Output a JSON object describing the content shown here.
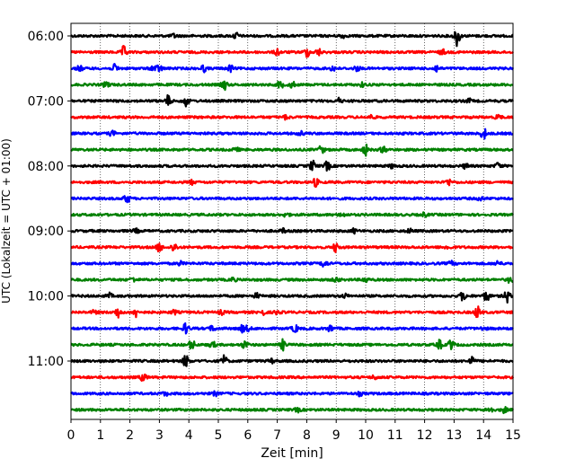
{
  "chart_data": {
    "type": "line",
    "title": "",
    "xlabel": "Zeit  [min]",
    "ylabel": "UTC (Lokalzeit = UTC + 01:00)",
    "xlim": [
      0,
      15
    ],
    "x_ticks": [
      "0",
      "1",
      "2",
      "3",
      "4",
      "5",
      "6",
      "7",
      "8",
      "9",
      "10",
      "11",
      "12",
      "13",
      "14",
      "15"
    ],
    "y_ticks": [
      {
        "label": "06:00",
        "row": 0
      },
      {
        "label": "07:00",
        "row": 4
      },
      {
        "label": "08:00",
        "row": 8
      },
      {
        "label": "09:00",
        "row": 12
      },
      {
        "label": "10:00",
        "row": 16
      },
      {
        "label": "11:00",
        "row": 20
      }
    ],
    "grid_x": true,
    "trace_interval_minutes": 15,
    "trace_colors": [
      "#000000",
      "#ff0000",
      "#0000ff",
      "#008000"
    ],
    "traces": [
      {
        "start": "06:00",
        "events": [
          [
            3.5,
            0.3
          ],
          [
            5.6,
            0.5
          ],
          [
            13.1,
            1.6
          ],
          [
            9.2,
            0.3
          ]
        ]
      },
      {
        "start": "06:15",
        "events": [
          [
            1.8,
            0.9
          ],
          [
            7.0,
            0.5
          ],
          [
            8.0,
            0.7
          ],
          [
            8.4,
            0.5
          ],
          [
            12.6,
            0.4
          ]
        ]
      },
      {
        "start": "06:30",
        "events": [
          [
            0.3,
            0.4
          ],
          [
            1.5,
            0.6
          ],
          [
            2.8,
            0.5
          ],
          [
            3.0,
            0.5
          ],
          [
            4.5,
            0.5
          ],
          [
            5.4,
            0.5
          ],
          [
            8.9,
            0.4
          ],
          [
            9.7,
            0.4
          ],
          [
            12.4,
            0.5
          ]
        ]
      },
      {
        "start": "06:45",
        "events": [
          [
            1.2,
            0.5
          ],
          [
            5.2,
            0.8
          ],
          [
            7.1,
            0.6
          ],
          [
            7.5,
            0.5
          ],
          [
            9.9,
            0.3
          ]
        ]
      },
      {
        "start": "07:00",
        "events": [
          [
            3.3,
            0.8
          ],
          [
            3.9,
            0.8
          ],
          [
            9.1,
            0.4
          ],
          [
            13.5,
            0.3
          ]
        ]
      },
      {
        "start": "07:15",
        "events": [
          [
            10.2,
            0.3
          ],
          [
            14.5,
            0.4
          ],
          [
            7.3,
            0.3
          ]
        ]
      },
      {
        "start": "07:30",
        "events": [
          [
            1.4,
            0.4
          ],
          [
            14.0,
            0.9
          ],
          [
            7.8,
            0.3
          ]
        ]
      },
      {
        "start": "07:45",
        "events": [
          [
            8.5,
            0.6
          ],
          [
            10.0,
            0.8
          ],
          [
            10.6,
            0.5
          ],
          [
            5.6,
            0.3
          ]
        ]
      },
      {
        "start": "08:00",
        "events": [
          [
            8.2,
            0.8
          ],
          [
            8.7,
            0.7
          ],
          [
            10.9,
            0.3
          ],
          [
            13.4,
            0.4
          ],
          [
            14.5,
            0.5
          ]
        ]
      },
      {
        "start": "08:15",
        "events": [
          [
            8.3,
            0.6
          ],
          [
            12.8,
            0.5
          ],
          [
            4.1,
            0.3
          ]
        ]
      },
      {
        "start": "08:30",
        "events": [
          [
            1.9,
            0.7
          ],
          [
            13.9,
            0.3
          ]
        ]
      },
      {
        "start": "08:45",
        "events": [
          [
            7.3,
            0.3
          ],
          [
            9.2,
            0.3
          ],
          [
            12.0,
            0.3
          ]
        ]
      },
      {
        "start": "09:00",
        "events": [
          [
            2.2,
            0.3
          ],
          [
            7.2,
            0.3
          ],
          [
            9.6,
            0.3
          ],
          [
            11.5,
            0.3
          ]
        ]
      },
      {
        "start": "09:15",
        "events": [
          [
            3.0,
            0.7
          ],
          [
            3.5,
            0.7
          ],
          [
            9.0,
            0.8
          ],
          [
            12.8,
            0.3
          ]
        ]
      },
      {
        "start": "09:30",
        "events": [
          [
            3.7,
            0.3
          ],
          [
            8.6,
            0.6
          ],
          [
            12.9,
            0.3
          ],
          [
            14.5,
            0.4
          ]
        ]
      },
      {
        "start": "09:45",
        "events": [
          [
            2.1,
            0.3
          ],
          [
            5.5,
            0.3
          ],
          [
            9.0,
            0.4
          ],
          [
            10.0,
            0.4
          ],
          [
            14.9,
            0.5
          ]
        ]
      },
      {
        "start": "10:00",
        "events": [
          [
            1.3,
            0.4
          ],
          [
            6.3,
            0.4
          ],
          [
            9.3,
            0.3
          ],
          [
            13.3,
            0.7
          ],
          [
            14.1,
            0.8
          ],
          [
            14.8,
            1.0
          ]
        ]
      },
      {
        "start": "10:15",
        "events": [
          [
            0.8,
            0.3
          ],
          [
            1.6,
            0.8
          ],
          [
            2.2,
            0.7
          ],
          [
            3.5,
            0.3
          ],
          [
            5.1,
            0.3
          ],
          [
            6.5,
            0.4
          ],
          [
            7.0,
            0.3
          ],
          [
            13.8,
            0.9
          ]
        ]
      },
      {
        "start": "10:30",
        "events": [
          [
            3.9,
            0.8
          ],
          [
            4.8,
            0.4
          ],
          [
            5.8,
            0.5
          ],
          [
            6.0,
            0.4
          ],
          [
            7.6,
            0.6
          ],
          [
            8.8,
            0.5
          ],
          [
            14.0,
            0.3
          ]
        ]
      },
      {
        "start": "10:45",
        "events": [
          [
            4.1,
            0.8
          ],
          [
            4.8,
            0.5
          ],
          [
            5.9,
            0.6
          ],
          [
            7.2,
            0.8
          ],
          [
            12.5,
            0.7
          ],
          [
            12.9,
            0.8
          ]
        ]
      },
      {
        "start": "11:00",
        "events": [
          [
            3.9,
            1.0
          ],
          [
            5.2,
            0.8
          ],
          [
            6.8,
            0.3
          ],
          [
            13.6,
            0.6
          ]
        ]
      },
      {
        "start": "11:15",
        "events": [
          [
            2.4,
            0.3
          ],
          [
            2.5,
            0.3
          ],
          [
            10.3,
            0.3
          ]
        ]
      },
      {
        "start": "11:30",
        "events": [
          [
            4.9,
            0.3
          ],
          [
            9.8,
            0.3
          ],
          [
            3.2,
            0.3
          ]
        ]
      },
      {
        "start": "11:45",
        "events": [
          [
            14.2,
            0.6
          ],
          [
            14.7,
            0.4
          ],
          [
            7.7,
            0.3
          ]
        ]
      }
    ],
    "background_noise": 0.18
  }
}
